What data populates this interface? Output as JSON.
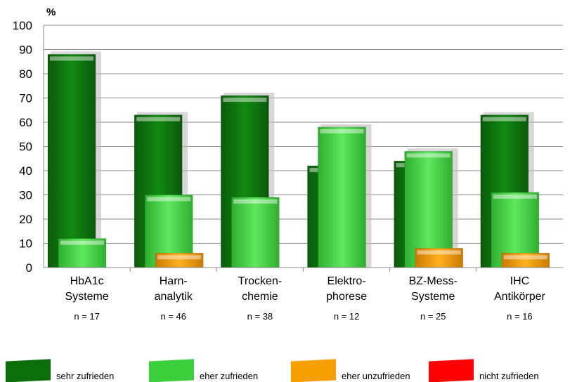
{
  "chart_data": {
    "type": "bar",
    "ylabel": "%",
    "ylim": [
      0,
      100
    ],
    "yticks": [
      0,
      10,
      20,
      30,
      40,
      50,
      60,
      70,
      80,
      90,
      100
    ],
    "grid": true,
    "categories": [
      {
        "label": [
          "HbA1c",
          "Systeme"
        ],
        "n": "n =  17"
      },
      {
        "label": [
          "Harn-",
          "analytik"
        ],
        "n": "n = 46"
      },
      {
        "label": [
          "Trocken-",
          "chemie"
        ],
        "n": "n = 38"
      },
      {
        "label": [
          "Elektro-",
          "phorese"
        ],
        "n": "n = 12"
      },
      {
        "label": [
          "BZ-Mess-",
          "Systeme"
        ],
        "n": "n = 25"
      },
      {
        "label": [
          "IHC",
          "Antikörper"
        ],
        "n": "n = 16"
      }
    ],
    "series": [
      {
        "name": "sehr zufrieden",
        "color": "#0b6e0b",
        "values": [
          88,
          63,
          71,
          42,
          44,
          63
        ]
      },
      {
        "name": "eher zufrieden",
        "color": "#3ccf3c",
        "values": [
          12,
          30,
          29,
          58,
          48,
          31
        ]
      },
      {
        "name": "eher unzufrieden",
        "color": "#f5a000",
        "values": [
          0,
          6,
          0,
          0,
          8,
          6
        ]
      },
      {
        "name": "nicht zufrieden",
        "color": "#ff0000",
        "values": [
          0,
          0,
          0,
          0,
          0,
          0
        ]
      }
    ],
    "legend_position": "bottom"
  }
}
